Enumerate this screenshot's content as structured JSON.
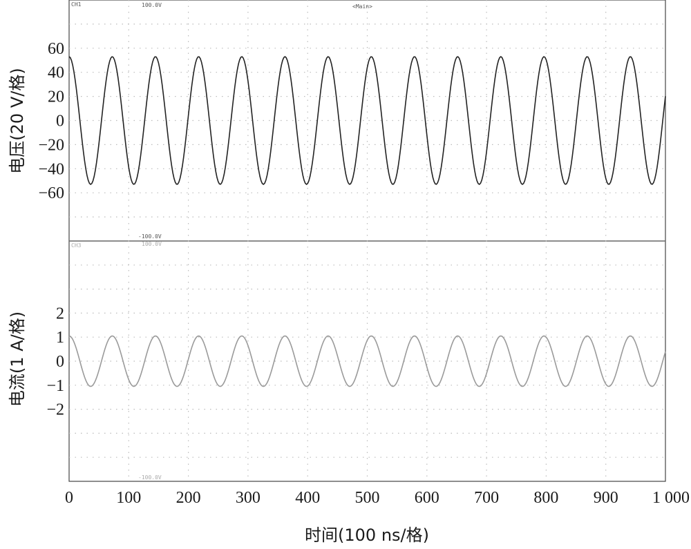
{
  "chart_data": [
    {
      "type": "line",
      "series": [
        {
          "name": "",
          "x": [],
          "y": []
        }
      ],
      "ylabel": "电压(20 V/格)",
      "yticks": [
        60,
        40,
        20,
        0,
        -20,
        -40,
        -60
      ],
      "ylim": [
        -100,
        100
      ],
      "xlim": [
        0,
        1000
      ],
      "amplitude": 53,
      "period": 72.4,
      "phase_deg": 90,
      "grid": true,
      "color": "#222222",
      "channel_label": "CH1",
      "top_scale": "100.0V",
      "bottom_scale": "-100.0V",
      "title": "<Main>"
    },
    {
      "type": "line",
      "series": [
        {
          "name": "",
          "x": [],
          "y": []
        }
      ],
      "ylabel": "电流(1 A/格)",
      "yticks": [
        2,
        1,
        0,
        -1,
        -2
      ],
      "ylim": [
        -5,
        5
      ],
      "xlim": [
        0,
        1000
      ],
      "amplitude": 1.05,
      "period": 72.4,
      "phase_deg": 90,
      "grid": true,
      "color": "#9a9a9a",
      "channel_label": "CH3",
      "top_scale": "100.0V",
      "bottom_scale": "-100.0V"
    }
  ],
  "xaxis": {
    "label": "时间(100 ns/格)",
    "ticks": [
      "0",
      "100",
      "200",
      "300",
      "400",
      "500",
      "600",
      "700",
      "800",
      "900",
      "1 000"
    ]
  }
}
